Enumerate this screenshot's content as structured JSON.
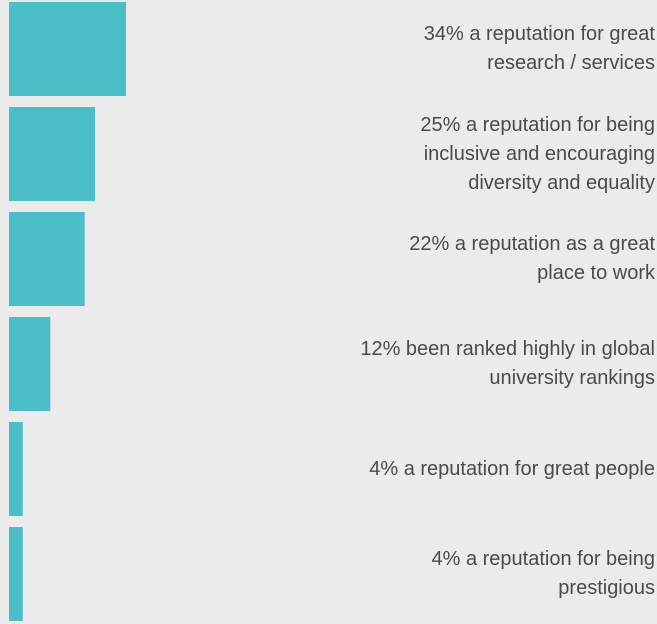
{
  "chart_data": {
    "type": "bar",
    "orientation": "horizontal",
    "color": "#4bbfc8",
    "categories": [
      "a reputation for great research / services",
      "a reputation for being inclusive and encouraging diversity and equality",
      "a reputation as a great place to work",
      "been ranked highly in global university rankings",
      "a reputation for great people",
      "a reputation for being prestigious"
    ],
    "values": [
      34,
      25,
      22,
      12,
      4,
      4
    ],
    "value_labels": [
      "34%",
      "25%",
      "22%",
      "12%",
      "4%",
      "4%"
    ]
  }
}
